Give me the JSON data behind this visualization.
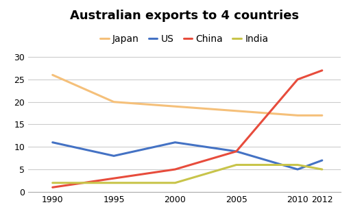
{
  "title": "Australian exports to 4 countries",
  "years": [
    1990,
    1995,
    2000,
    2005,
    2010,
    2012
  ],
  "series": {
    "Japan": {
      "values": [
        26,
        20,
        19,
        18,
        17,
        17
      ],
      "color": "#f5c07a",
      "linewidth": 2.2
    },
    "US": {
      "values": [
        11,
        8,
        11,
        9,
        5,
        7
      ],
      "color": "#4472c4",
      "linewidth": 2.2
    },
    "China": {
      "values": [
        1,
        3,
        5,
        9,
        25,
        27
      ],
      "color": "#e74c3c",
      "linewidth": 2.2
    },
    "India": {
      "values": [
        2,
        2,
        2,
        6,
        6,
        5
      ],
      "color": "#c8c44a",
      "linewidth": 2.2
    }
  },
  "xlim": [
    1988,
    2013.5
  ],
  "ylim": [
    0,
    32
  ],
  "yticks": [
    0,
    5,
    10,
    15,
    20,
    25,
    30
  ],
  "xticks": [
    1990,
    1995,
    2000,
    2005,
    2010,
    2012
  ],
  "legend_order": [
    "Japan",
    "US",
    "China",
    "India"
  ],
  "background_color": "#ffffff",
  "grid_color": "#cccccc",
  "title_fontsize": 13,
  "legend_fontsize": 10,
  "tick_fontsize": 9
}
